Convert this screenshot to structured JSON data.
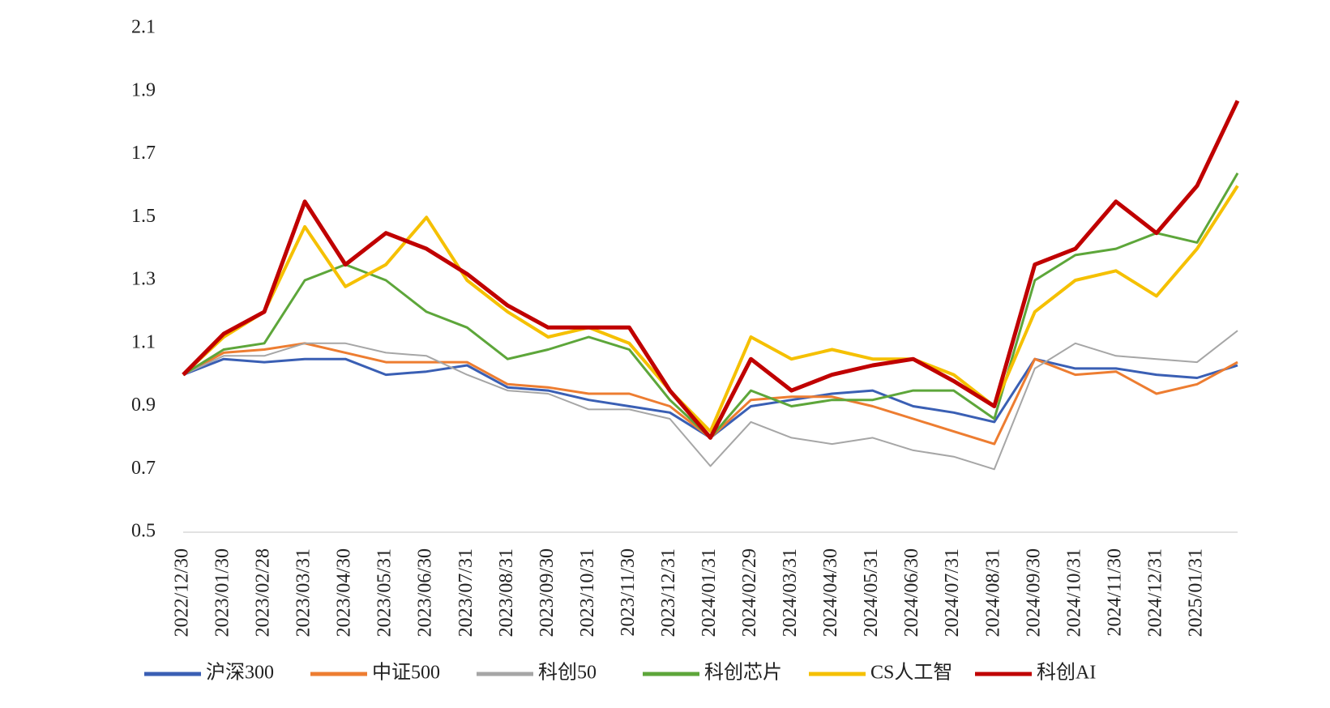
{
  "chart_data": {
    "type": "line",
    "categories": [
      "2022/12/30",
      "2023/01/30",
      "2023/02/28",
      "2023/03/31",
      "2023/04/30",
      "2023/05/31",
      "2023/06/30",
      "2023/07/31",
      "2023/08/31",
      "2023/09/30",
      "2023/10/31",
      "2023/11/30",
      "2023/12/31",
      "2024/01/31",
      "2024/02/29",
      "2024/03/31",
      "2024/04/30",
      "2024/05/31",
      "2024/06/30",
      "2024/07/31",
      "2024/08/31",
      "2024/09/30",
      "2024/10/31",
      "2024/11/30",
      "2024/12/31",
      "2025/01/31",
      null
    ],
    "series": [
      {
        "name": "沪深300",
        "color": "#3a5fb4",
        "values": [
          1.0,
          1.05,
          1.04,
          1.05,
          1.05,
          1.0,
          1.01,
          1.03,
          0.96,
          0.95,
          0.92,
          0.9,
          0.88,
          0.8,
          0.9,
          0.92,
          0.94,
          0.95,
          0.9,
          0.88,
          0.85,
          1.05,
          1.02,
          1.02,
          1.0,
          0.99,
          1.03
        ]
      },
      {
        "name": "中证500",
        "color": "#ed7d31",
        "values": [
          1.0,
          1.07,
          1.08,
          1.1,
          1.07,
          1.04,
          1.04,
          1.04,
          0.97,
          0.96,
          0.94,
          0.94,
          0.9,
          0.8,
          0.92,
          0.93,
          0.93,
          0.9,
          0.86,
          0.82,
          0.78,
          1.05,
          1.0,
          1.01,
          0.94,
          0.97,
          1.04
        ]
      },
      {
        "name": "科创50",
        "color": "#a6a6a6",
        "values": [
          1.0,
          1.06,
          1.06,
          1.1,
          1.1,
          1.07,
          1.06,
          1.0,
          0.95,
          0.94,
          0.89,
          0.89,
          0.86,
          0.71,
          0.85,
          0.8,
          0.78,
          0.8,
          0.76,
          0.74,
          0.7,
          1.02,
          1.1,
          1.06,
          1.05,
          1.04,
          1.14
        ]
      },
      {
        "name": "科创芯片",
        "color": "#5da63a",
        "values": [
          1.0,
          1.08,
          1.1,
          1.3,
          1.35,
          1.3,
          1.2,
          1.15,
          1.05,
          1.08,
          1.12,
          1.08,
          0.92,
          0.8,
          0.95,
          0.9,
          0.92,
          0.92,
          0.95,
          0.95,
          0.86,
          1.3,
          1.38,
          1.4,
          1.45,
          1.42,
          1.64
        ]
      },
      {
        "name": "CS人工智",
        "color": "#f5c000",
        "values": [
          1.0,
          1.12,
          1.2,
          1.47,
          1.28,
          1.35,
          1.5,
          1.3,
          1.2,
          1.12,
          1.15,
          1.1,
          0.95,
          0.82,
          1.12,
          1.05,
          1.08,
          1.05,
          1.05,
          1.0,
          0.9,
          1.2,
          1.3,
          1.33,
          1.25,
          1.4,
          1.6
        ]
      },
      {
        "name": "科创AI",
        "color": "#c00000",
        "values": [
          1.0,
          1.13,
          1.2,
          1.55,
          1.35,
          1.45,
          1.4,
          1.32,
          1.22,
          1.15,
          1.15,
          1.15,
          0.95,
          0.8,
          1.05,
          0.95,
          1.0,
          1.03,
          1.05,
          0.98,
          0.9,
          1.35,
          1.4,
          1.55,
          1.45,
          1.6,
          1.87
        ]
      }
    ],
    "ylim": [
      0.5,
      2.1
    ],
    "yticks": [
      0.5,
      0.7,
      0.9,
      1.1,
      1.3,
      1.5,
      1.7,
      1.9,
      2.1
    ],
    "legend": "bottom"
  }
}
